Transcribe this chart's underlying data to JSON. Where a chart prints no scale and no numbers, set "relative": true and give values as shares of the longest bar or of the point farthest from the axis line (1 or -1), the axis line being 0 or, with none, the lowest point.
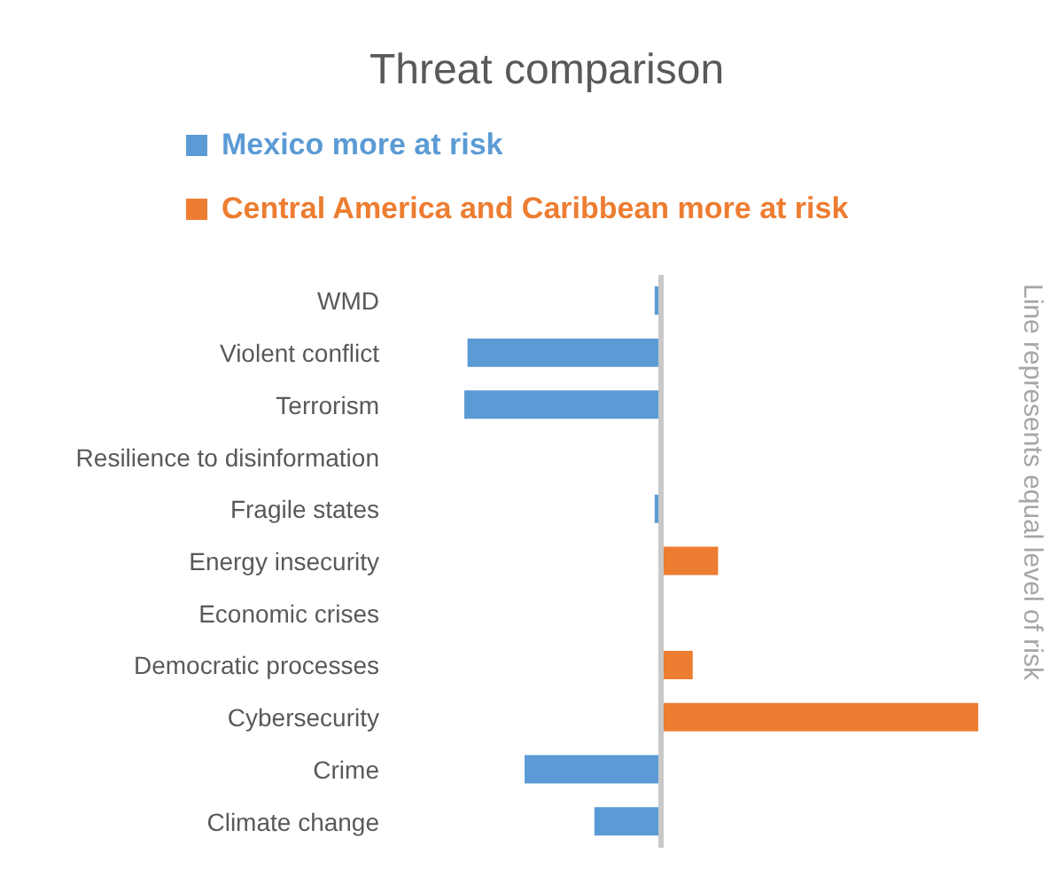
{
  "chart_data": {
    "type": "bar",
    "orientation": "horizontal",
    "relative": true,
    "stacked": true,
    "title": "Threat comparison",
    "legend": "top",
    "categories": [
      "WMD",
      "Violent conflict",
      "Terrorism",
      "Resilience to disinformation",
      "Fragile states",
      "Energy insecurity",
      "Economic crises",
      "Democratic processes",
      "Cybersecurity",
      "Crime",
      "Climate change"
    ],
    "series": [
      {
        "name": "Mexico more at risk",
        "color": "#5b9bd5",
        "values": [
          -0.02,
          -0.61,
          -0.62,
          null,
          -0.02,
          null,
          null,
          null,
          null,
          -0.43,
          -0.21
        ]
      },
      {
        "name": "Central America and Caribbean more at risk",
        "color": "#ed7d31",
        "values": [
          null,
          null,
          null,
          null,
          null,
          0.18,
          null,
          0.1,
          1,
          null,
          null
        ]
      }
    ],
    "ref_lines": [
      {
        "axis": "x",
        "value": 0,
        "label": "Line represents equal level of risk",
        "color": "#c8c8c8"
      }
    ]
  }
}
